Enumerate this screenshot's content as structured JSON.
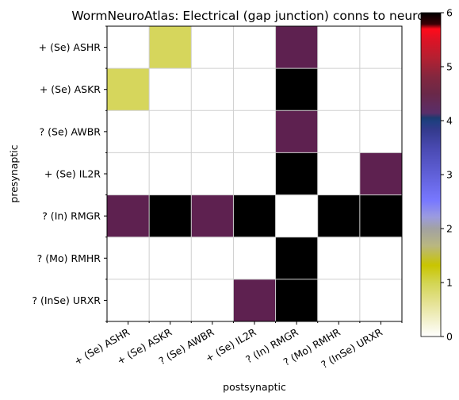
{
  "chart_data": {
    "type": "heatmap",
    "title": "WormNeuroAtlas: Electrical (gap junction) conns to neurons",
    "xlabel": "postsynaptic",
    "ylabel": "presynaptic",
    "x_labels": [
      "+ (Se) ASHR",
      "+ (Se) ASKR",
      "? (Se) AWBR",
      "+ (Se) IL2R",
      "? (In) RMGR",
      "? (Mo) RMHR",
      "? (InSe) URXR"
    ],
    "y_labels": [
      "+ (Se) ASHR",
      "+ (Se) ASKR",
      "? (Se) AWBR",
      "+ (Se) IL2R",
      "? (In) RMGR",
      "? (Mo) RMHR",
      "? (InSe) URXR"
    ],
    "values": [
      [
        0,
        1,
        0,
        0,
        5,
        0,
        0
      ],
      [
        1,
        0,
        0,
        0,
        6,
        0,
        0
      ],
      [
        0,
        0,
        0,
        0,
        5,
        0,
        0
      ],
      [
        0,
        0,
        0,
        0,
        6,
        0,
        5
      ],
      [
        5,
        6,
        5,
        6,
        0,
        6,
        6
      ],
      [
        0,
        0,
        0,
        0,
        6,
        0,
        0
      ],
      [
        0,
        0,
        0,
        5,
        6,
        0,
        0
      ]
    ],
    "colorbar": {
      "range": [
        0,
        6
      ],
      "ticks": [
        "0",
        "1",
        "2",
        "3",
        "4",
        "5",
        "6"
      ],
      "colormap": "gist_stern_r"
    },
    "grid": true
  }
}
